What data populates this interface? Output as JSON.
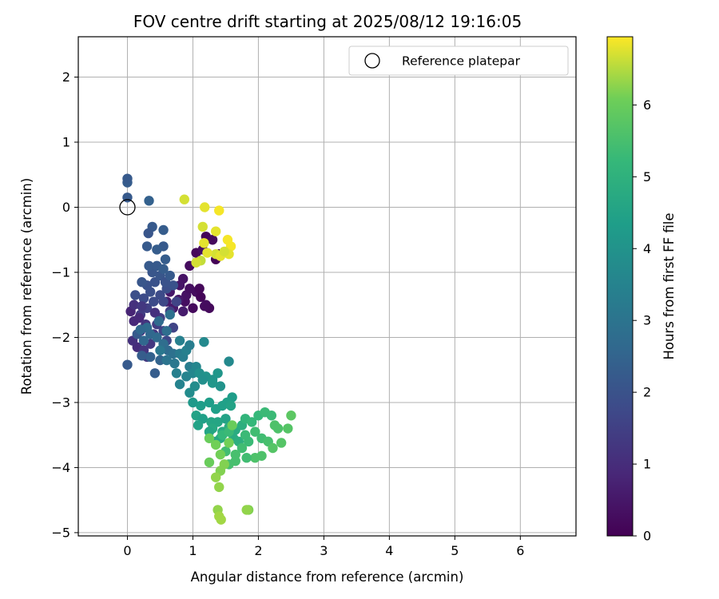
{
  "chart_data": {
    "type": "scatter",
    "title": "FOV centre drift starting at 2025/08/12 19:16:05",
    "xlabel": "Angular distance from reference (arcmin)",
    "ylabel": "Rotation from reference (arcmin)",
    "xlim": [
      -0.75,
      6.85
    ],
    "ylim": [
      -5.05,
      2.62
    ],
    "xticks": [
      0,
      1,
      2,
      3,
      4,
      5,
      6
    ],
    "yticks": [
      -5,
      -4,
      -3,
      -2,
      -1,
      0,
      1,
      2
    ],
    "grid": true,
    "legend": {
      "position": "top-right",
      "entries": [
        "Reference platepar"
      ]
    },
    "reference_point": {
      "x": 0,
      "y": 0
    },
    "colorbar": {
      "label": "Hours from first FF file",
      "colormap": "viridis",
      "range": [
        0,
        6.95
      ],
      "ticks": [
        0,
        1,
        2,
        3,
        4,
        5,
        6
      ]
    },
    "series": [
      {
        "points": [
          [
            1.05,
            -0.7,
            0.15
          ],
          [
            1.2,
            -0.45,
            0.1
          ],
          [
            1.3,
            -0.5,
            0.2
          ],
          [
            1.35,
            -0.8,
            0.05
          ],
          [
            1.4,
            -0.72,
            0.1
          ],
          [
            0.95,
            -0.9,
            0.25
          ],
          [
            1.15,
            -0.65,
            0.3
          ],
          [
            0.88,
            -1.45,
            0.3
          ],
          [
            1.0,
            -1.55,
            0.2
          ],
          [
            1.05,
            -1.3,
            0.25
          ],
          [
            1.12,
            -1.38,
            0.1
          ],
          [
            1.2,
            -1.5,
            0.3
          ],
          [
            1.25,
            -1.55,
            0.2
          ],
          [
            0.85,
            -1.1,
            0.4
          ],
          [
            0.9,
            -1.35,
            0.35
          ],
          [
            0.8,
            -1.2,
            0.45
          ],
          [
            0.65,
            -1.3,
            0.5
          ],
          [
            0.7,
            -1.55,
            0.55
          ],
          [
            0.85,
            -1.6,
            0.6
          ],
          [
            0.6,
            -1.45,
            0.6
          ],
          [
            1.1,
            -1.25,
            0.15
          ],
          [
            0.95,
            -1.25,
            0.3
          ],
          [
            0.78,
            -1.42,
            0.5
          ],
          [
            1.18,
            -1.52,
            0.25
          ]
        ]
      },
      {
        "points": [
          [
            0.05,
            -1.6,
            0.8
          ],
          [
            0.1,
            -1.75,
            0.9
          ],
          [
            0.2,
            -1.9,
            1.0
          ],
          [
            0.15,
            -2.15,
            1.0
          ],
          [
            0.08,
            -2.05,
            1.1
          ],
          [
            0.25,
            -2.2,
            1.2
          ],
          [
            0.3,
            -2.3,
            1.3
          ],
          [
            0.35,
            -2.1,
            1.3
          ],
          [
            0.4,
            -1.95,
            1.2
          ],
          [
            0.45,
            -1.8,
            1.4
          ],
          [
            0.2,
            -1.65,
            1.4
          ],
          [
            0.3,
            -1.55,
            1.5
          ],
          [
            0.5,
            -1.7,
            1.5
          ],
          [
            0.55,
            -1.9,
            1.6
          ],
          [
            0.6,
            -2.05,
            1.7
          ],
          [
            0.7,
            -1.85,
            1.6
          ],
          [
            0.65,
            -1.6,
            1.5
          ],
          [
            0.75,
            -1.45,
            1.6
          ],
          [
            0.55,
            -1.45,
            1.7
          ],
          [
            0.4,
            -1.45,
            1.8
          ],
          [
            0.25,
            -1.4,
            1.8
          ],
          [
            0.12,
            -1.35,
            1.9
          ],
          [
            0.35,
            -1.3,
            1.9
          ],
          [
            0.5,
            -1.35,
            1.8
          ],
          [
            0.6,
            -1.25,
            1.9
          ],
          [
            0.42,
            -1.15,
            2.0
          ],
          [
            0.3,
            -1.2,
            2.0
          ],
          [
            0.22,
            -1.15,
            2.1
          ],
          [
            0.38,
            -1.0,
            2.1
          ],
          [
            0.5,
            -1.05,
            2.1
          ],
          [
            0.58,
            -1.15,
            2.0
          ],
          [
            0.65,
            -1.05,
            2.2
          ],
          [
            0.7,
            -1.2,
            2.0
          ],
          [
            0.33,
            -0.9,
            2.2
          ],
          [
            0.45,
            -0.9,
            2.2
          ],
          [
            0.55,
            -0.95,
            2.3
          ],
          [
            0.58,
            -0.8,
            2.3
          ],
          [
            0.55,
            -0.6,
            2.2
          ],
          [
            0.45,
            -0.65,
            2.3
          ],
          [
            0.3,
            -0.6,
            2.2
          ],
          [
            0.38,
            -0.3,
            2.2
          ],
          [
            0.32,
            -0.4,
            2.1
          ],
          [
            0.55,
            -0.35,
            2.3
          ],
          [
            0.0,
            -2.42,
            2.2
          ],
          [
            0.42,
            -2.55,
            2.3
          ],
          [
            0.35,
            -2.3,
            2.4
          ],
          [
            0.22,
            -2.28,
            2.3
          ],
          [
            0.15,
            -1.95,
            2.2
          ],
          [
            0.5,
            -2.35,
            2.5
          ],
          [
            0.0,
            0.15,
            2.2
          ],
          [
            0.0,
            0.38,
            2.3
          ],
          [
            0.0,
            0.44,
            2.2
          ],
          [
            0.33,
            0.1,
            2.4
          ],
          [
            0.1,
            -1.5,
            1.1
          ],
          [
            0.18,
            -1.7,
            0.9
          ],
          [
            0.28,
            -1.8,
            1.2
          ],
          [
            0.42,
            -1.62,
            1.1
          ],
          [
            0.22,
            -1.52,
            1.3
          ]
        ]
      },
      {
        "points": [
          [
            0.35,
            -1.95,
            2.6
          ],
          [
            0.45,
            -2.0,
            2.7
          ],
          [
            0.55,
            -2.1,
            2.8
          ],
          [
            0.62,
            -2.2,
            2.7
          ],
          [
            0.7,
            -2.25,
            2.9
          ],
          [
            0.6,
            -2.35,
            3.0
          ],
          [
            0.5,
            -2.2,
            3.1
          ],
          [
            0.72,
            -2.4,
            3.1
          ],
          [
            0.8,
            -2.25,
            3.2
          ],
          [
            0.85,
            -2.3,
            3.3
          ],
          [
            0.95,
            -2.45,
            3.3
          ],
          [
            0.75,
            -2.55,
            3.4
          ],
          [
            0.8,
            -2.72,
            3.5
          ],
          [
            0.9,
            -2.6,
            3.5
          ],
          [
            1.0,
            -2.55,
            3.6
          ],
          [
            1.05,
            -2.45,
            3.6
          ],
          [
            0.9,
            -2.2,
            3.4
          ],
          [
            0.8,
            -2.05,
            3.4
          ],
          [
            0.95,
            -2.12,
            3.3
          ],
          [
            0.6,
            -1.9,
            2.8
          ],
          [
            0.48,
            -1.75,
            2.7
          ],
          [
            0.3,
            -1.85,
            2.7
          ],
          [
            0.25,
            -2.05,
            2.6
          ],
          [
            0.2,
            -1.88,
            2.6
          ],
          [
            0.65,
            -1.65,
            2.9
          ]
        ]
      },
      {
        "points": [
          [
            1.1,
            -2.55,
            3.9
          ],
          [
            1.2,
            -2.6,
            4.0
          ],
          [
            1.3,
            -2.65,
            4.0
          ],
          [
            1.38,
            -2.55,
            4.1
          ],
          [
            1.42,
            -2.75,
            4.0
          ],
          [
            1.3,
            -2.7,
            4.1
          ],
          [
            1.15,
            -2.65,
            3.9
          ],
          [
            1.03,
            -2.75,
            3.8
          ],
          [
            0.95,
            -2.85,
            3.8
          ],
          [
            1.17,
            -2.07,
            3.7
          ],
          [
            1.55,
            -2.37,
            3.7
          ],
          [
            1.0,
            -3.0,
            4.2
          ],
          [
            1.12,
            -3.05,
            4.3
          ],
          [
            1.25,
            -3.0,
            4.3
          ],
          [
            1.35,
            -3.1,
            4.4
          ],
          [
            1.45,
            -3.05,
            4.4
          ],
          [
            1.05,
            -3.2,
            4.5
          ],
          [
            1.15,
            -3.25,
            4.4
          ],
          [
            1.28,
            -3.3,
            4.6
          ],
          [
            1.38,
            -3.3,
            4.6
          ],
          [
            1.5,
            -3.25,
            4.5
          ],
          [
            1.6,
            -2.92,
            4.3
          ],
          [
            1.52,
            -3.0,
            4.4
          ],
          [
            1.58,
            -3.05,
            4.5
          ],
          [
            1.3,
            -3.4,
            4.7
          ],
          [
            1.45,
            -3.45,
            4.7
          ],
          [
            1.55,
            -3.38,
            4.8
          ],
          [
            1.65,
            -3.42,
            4.8
          ],
          [
            1.75,
            -3.35,
            4.9
          ],
          [
            1.35,
            -3.6,
            4.6
          ],
          [
            1.42,
            -3.55,
            4.7
          ],
          [
            1.25,
            -3.45,
            4.6
          ],
          [
            1.08,
            -3.35,
            4.5
          ],
          [
            1.62,
            -3.55,
            4.8
          ],
          [
            1.7,
            -3.6,
            4.9
          ]
        ]
      },
      {
        "points": [
          [
            1.8,
            -3.25,
            5.1
          ],
          [
            1.9,
            -3.3,
            5.2
          ],
          [
            2.0,
            -3.2,
            5.2
          ],
          [
            2.1,
            -3.15,
            5.3
          ],
          [
            2.2,
            -3.2,
            5.3
          ],
          [
            1.95,
            -3.45,
            5.4
          ],
          [
            1.85,
            -3.6,
            5.3
          ],
          [
            2.05,
            -3.55,
            5.4
          ],
          [
            2.15,
            -3.6,
            5.5
          ],
          [
            1.75,
            -3.7,
            5.4
          ],
          [
            1.65,
            -3.8,
            5.5
          ],
          [
            1.55,
            -3.95,
            5.5
          ],
          [
            1.5,
            -3.75,
            5.4
          ],
          [
            1.95,
            -3.85,
            5.6
          ],
          [
            2.05,
            -3.82,
            5.6
          ],
          [
            1.65,
            -3.9,
            5.5
          ],
          [
            1.45,
            -3.5,
            5.2
          ],
          [
            1.55,
            -3.45,
            5.3
          ],
          [
            1.8,
            -3.5,
            5.3
          ],
          [
            2.25,
            -3.35,
            5.6
          ],
          [
            2.3,
            -3.4,
            5.6
          ],
          [
            2.35,
            -3.62,
            5.7
          ],
          [
            2.45,
            -3.4,
            5.7
          ],
          [
            2.5,
            -3.2,
            5.8
          ],
          [
            2.22,
            -3.7,
            5.7
          ],
          [
            1.82,
            -3.85,
            5.4
          ]
        ]
      },
      {
        "points": [
          [
            1.25,
            -3.55,
            6.0
          ],
          [
            1.35,
            -3.65,
            6.1
          ],
          [
            1.42,
            -3.8,
            6.1
          ],
          [
            1.48,
            -3.95,
            6.2
          ],
          [
            1.42,
            -4.05,
            6.2
          ],
          [
            1.35,
            -4.15,
            6.3
          ],
          [
            1.4,
            -4.3,
            6.3
          ],
          [
            1.38,
            -4.65,
            6.3
          ],
          [
            1.4,
            -4.75,
            6.4
          ],
          [
            1.43,
            -4.8,
            6.4
          ],
          [
            1.85,
            -4.65,
            6.2
          ],
          [
            1.82,
            -4.65,
            6.3
          ],
          [
            1.25,
            -3.92,
            6.0
          ],
          [
            1.55,
            -3.62,
            6.1
          ],
          [
            1.6,
            -3.35,
            6.0
          ]
        ]
      },
      {
        "points": [
          [
            0.87,
            0.12,
            6.7
          ],
          [
            1.18,
            0.0,
            6.8
          ],
          [
            1.4,
            -0.05,
            6.9
          ],
          [
            1.15,
            -0.3,
            6.7
          ],
          [
            1.35,
            -0.37,
            6.8
          ],
          [
            1.17,
            -0.55,
            6.8
          ],
          [
            1.53,
            -0.5,
            6.9
          ],
          [
            1.58,
            -0.6,
            6.9
          ],
          [
            1.55,
            -0.72,
            6.8
          ],
          [
            1.35,
            -0.72,
            6.7
          ],
          [
            1.42,
            -0.75,
            6.8
          ],
          [
            1.12,
            -0.82,
            6.6
          ],
          [
            1.05,
            -0.85,
            6.7
          ],
          [
            1.22,
            -0.7,
            6.8
          ],
          [
            1.48,
            -0.68,
            6.7
          ]
        ]
      }
    ]
  }
}
